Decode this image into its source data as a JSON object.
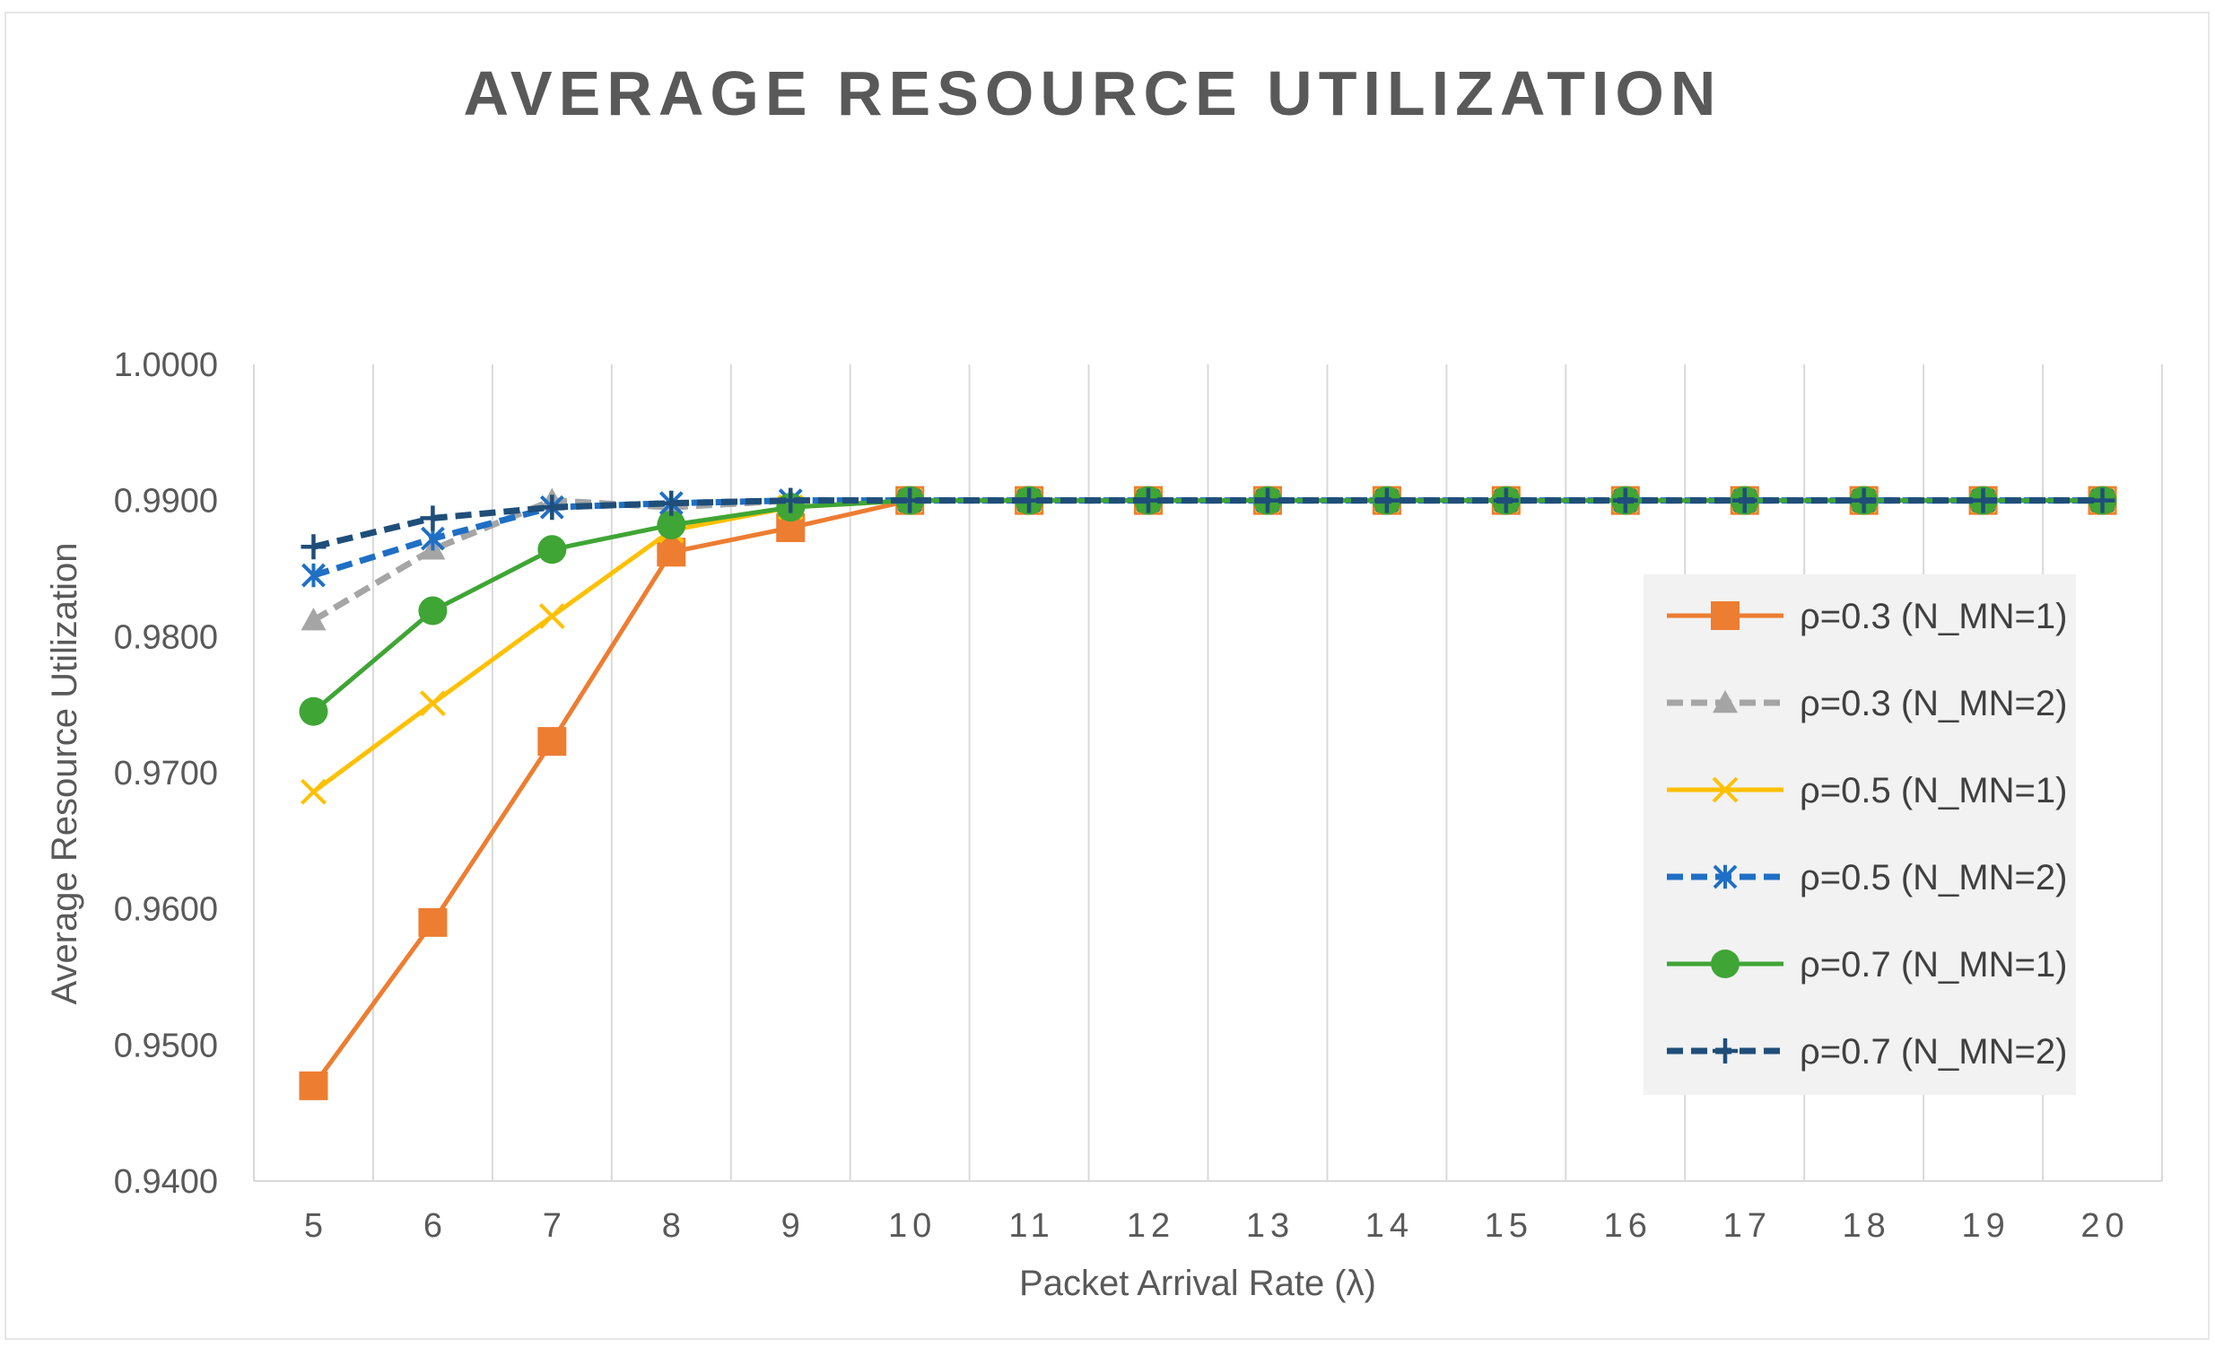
{
  "chart_data": {
    "type": "line",
    "title": "AVERAGE RESOURCE UTILIZATION",
    "xlabel": "Packet Arrival Rate  (λ)",
    "ylabel": "Average Resource Utilization",
    "categories": [
      "5",
      "6",
      "7",
      "8",
      "9",
      "10",
      "11",
      "12",
      "13",
      "14",
      "15",
      "16",
      "17",
      "18",
      "19",
      "20"
    ],
    "ylim": [
      0.94,
      1.0
    ],
    "yticks": [
      "0.9400",
      "0.9500",
      "0.9600",
      "0.9700",
      "0.9800",
      "0.9900",
      "1.0000"
    ],
    "ytick_values": [
      0.94,
      0.95,
      0.96,
      0.97,
      0.98,
      0.99,
      1.0
    ],
    "grid": "vertical",
    "legend": "right",
    "series": [
      {
        "name": "ρ=0.3 (N_MN=1)",
        "color": "#ED7D31",
        "dash": "solid",
        "marker": "square",
        "values": [
          0.947,
          0.959,
          0.9723,
          0.9862,
          0.988,
          0.99,
          0.99,
          0.99,
          0.99,
          0.99,
          0.99,
          0.99,
          0.99,
          0.99,
          0.99,
          0.99
        ]
      },
      {
        "name": "ρ=0.3 (N_MN=2)",
        "color": "#A5A5A5",
        "dash": "dashed",
        "marker": "triangle",
        "values": [
          0.9812,
          0.9864,
          0.99,
          0.9895,
          0.99,
          0.99,
          0.99,
          0.99,
          0.99,
          0.99,
          0.99,
          0.99,
          0.99,
          0.99,
          0.99,
          0.99
        ]
      },
      {
        "name": "ρ=0.5 (N_MN=1)",
        "color": "#FFC000",
        "dash": "solid",
        "marker": "x",
        "values": [
          0.9686,
          0.9751,
          0.9815,
          0.9878,
          0.9895,
          0.99,
          0.99,
          0.99,
          0.99,
          0.99,
          0.99,
          0.99,
          0.99,
          0.99,
          0.99,
          0.99
        ]
      },
      {
        "name": "ρ=0.5 (N_MN=2)",
        "color": "#1F6FC5",
        "dash": "dashed",
        "marker": "asterisk",
        "values": [
          0.9845,
          0.9872,
          0.9895,
          0.9898,
          0.99,
          0.99,
          0.99,
          0.99,
          0.99,
          0.99,
          0.99,
          0.99,
          0.99,
          0.99,
          0.99,
          0.99
        ]
      },
      {
        "name": "ρ=0.7 (N_MN=1)",
        "color": "#3FA535",
        "dash": "solid",
        "marker": "circle",
        "values": [
          0.9745,
          0.9819,
          0.9864,
          0.9882,
          0.9895,
          0.99,
          0.99,
          0.99,
          0.99,
          0.99,
          0.99,
          0.99,
          0.99,
          0.99,
          0.99,
          0.99
        ]
      },
      {
        "name": "ρ=0.7 (N_MN=2)",
        "color": "#1F4E79",
        "dash": "dashed",
        "marker": "plus",
        "values": [
          0.9866,
          0.9887,
          0.9895,
          0.9898,
          0.99,
          0.99,
          0.99,
          0.99,
          0.99,
          0.99,
          0.99,
          0.99,
          0.99,
          0.99,
          0.99,
          0.99
        ]
      }
    ]
  },
  "colors": {
    "axis": "#D9D9D9",
    "grid": "#D9D9D9",
    "text": "#595959",
    "legend_bg": "#F2F2F2"
  }
}
